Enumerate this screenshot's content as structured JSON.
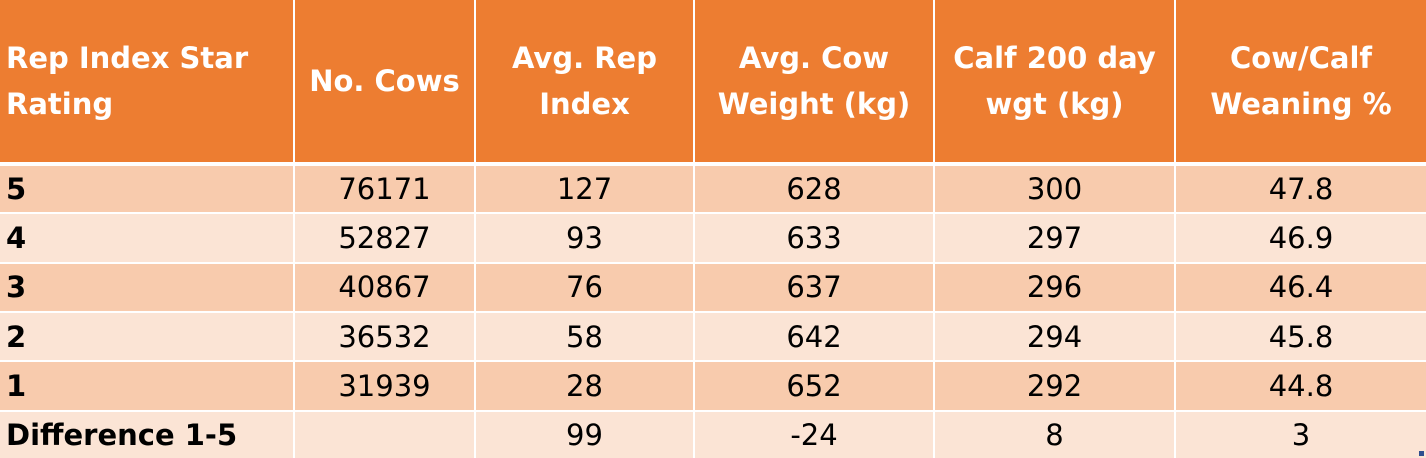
{
  "table": {
    "headers": [
      "Rep Index Star Rating",
      "No. Cows",
      "Avg. Rep Index",
      "Avg. Cow Weight (kg)",
      "Calf 200 day wgt (kg)",
      "Cow/Calf Weaning %"
    ],
    "rows": [
      [
        "5",
        "76171",
        "127",
        "628",
        "300",
        "47.8"
      ],
      [
        "4",
        "52827",
        "93",
        "633",
        "297",
        "46.9"
      ],
      [
        "3",
        "40867",
        "76",
        "637",
        "296",
        "46.4"
      ],
      [
        "2",
        "36532",
        "58",
        "642",
        "294",
        "45.8"
      ],
      [
        "1",
        "31939",
        "28",
        "652",
        "292",
        "44.8"
      ],
      [
        "Difference 1-5",
        "",
        "99",
        "-24",
        "8",
        "3"
      ]
    ]
  },
  "colors": {
    "header_bg": "#ed7d31",
    "row_dark": "#f8cbad",
    "row_light": "#fbe4d5"
  }
}
